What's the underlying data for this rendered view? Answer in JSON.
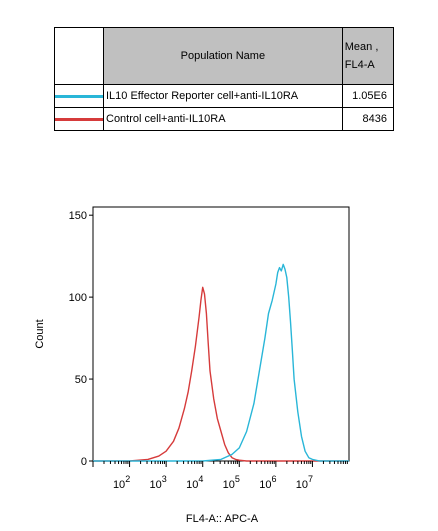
{
  "legend": {
    "header_name": "Population Name",
    "header_mean_line1": "Mean ,",
    "header_mean_line2": "FL4-A",
    "rows": [
      {
        "name": "IL10 Effector Reporter cell+anti-IL10RA",
        "mean": "1.05E6",
        "color": "#29b6d8"
      },
      {
        "name": "Control cell+anti-IL10RA",
        "mean": "8436",
        "color": "#d63b3b"
      }
    ]
  },
  "chart_data": {
    "type": "line",
    "xlabel": "FL4-A:: APC-A",
    "ylabel": "Count",
    "xscale": "log",
    "ylim": [
      0,
      155
    ],
    "yticks": [
      0,
      50,
      100,
      150
    ],
    "xtick_labels": [
      {
        "base": "10",
        "exp": "2",
        "decade": 2
      },
      {
        "base": "10",
        "exp": "3",
        "decade": 3
      },
      {
        "base": "10",
        "exp": "4",
        "decade": 4
      },
      {
        "base": "10",
        "exp": "5",
        "decade": 5
      },
      {
        "base": "10",
        "exp": "6",
        "decade": 6
      },
      {
        "base": "10",
        "exp": "7",
        "decade": 7
      }
    ],
    "series": [
      {
        "name": "Control cell+anti-IL10RA",
        "color": "#d63b3b",
        "x_log10": [
          1.0,
          2.0,
          2.5,
          2.8,
          3.0,
          3.2,
          3.35,
          3.5,
          3.6,
          3.7,
          3.8,
          3.9,
          3.95,
          4.0,
          4.05,
          4.1,
          4.15,
          4.2,
          4.3,
          4.4,
          4.5,
          4.6,
          4.7,
          4.8,
          4.9,
          5.0,
          5.2,
          5.6,
          6.5,
          8.0
        ],
        "y": [
          0,
          0,
          1,
          3,
          6,
          12,
          20,
          32,
          42,
          55,
          70,
          88,
          98,
          106,
          102,
          90,
          72,
          55,
          38,
          26,
          18,
          10,
          5,
          2,
          1,
          0.5,
          0,
          0,
          0,
          0
        ]
      },
      {
        "name": "IL10 Effector Reporter cell+anti-IL10RA",
        "color": "#29b6d8",
        "x_log10": [
          1.0,
          3.0,
          4.0,
          4.5,
          4.8,
          5.0,
          5.2,
          5.4,
          5.55,
          5.7,
          5.8,
          5.9,
          6.0,
          6.05,
          6.1,
          6.15,
          6.2,
          6.25,
          6.3,
          6.35,
          6.4,
          6.45,
          6.5,
          6.6,
          6.7,
          6.8,
          6.9,
          7.0,
          7.2,
          8.0
        ],
        "y": [
          0,
          0,
          0,
          1,
          4,
          8,
          18,
          35,
          55,
          75,
          90,
          98,
          108,
          115,
          118,
          116,
          120,
          117,
          112,
          100,
          85,
          68,
          50,
          30,
          15,
          6,
          2,
          1,
          0,
          0
        ]
      }
    ]
  }
}
